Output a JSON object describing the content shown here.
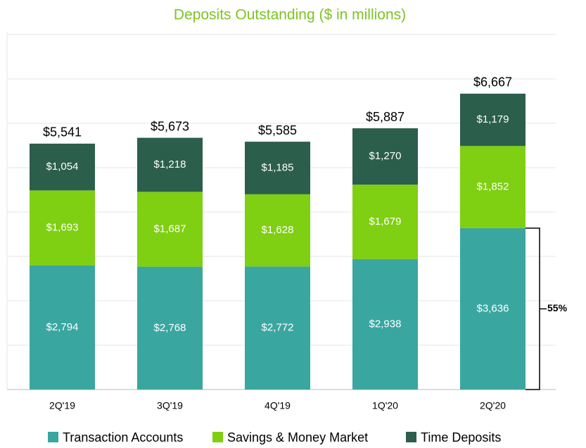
{
  "chart_data": {
    "type": "stacked_bar",
    "title": "Deposits Outstanding ($ in millions)",
    "categories": [
      "2Q'19",
      "3Q'19",
      "4Q'19",
      "1Q'20",
      "2Q'20"
    ],
    "series": [
      {
        "name": "Transaction Accounts",
        "color": "#3aa6a0",
        "values": [
          2794,
          2768,
          2772,
          2938,
          3636
        ],
        "value_labels": [
          "$2,794",
          "$2,768",
          "$2,772",
          "$2,938",
          "$3,636"
        ]
      },
      {
        "name": "Savings & Money Market",
        "color": "#7fcf12",
        "values": [
          1693,
          1687,
          1628,
          1679,
          1852
        ],
        "value_labels": [
          "$1,693",
          "$1,687",
          "$1,628",
          "$1,679",
          "$1,852"
        ]
      },
      {
        "name": "Time Deposits",
        "color": "#2c5e4c",
        "values": [
          1054,
          1218,
          1185,
          1270,
          1179
        ],
        "value_labels": [
          "$1,054",
          "$1,218",
          "$1,185",
          "$1,270",
          "$1,179"
        ]
      }
    ],
    "totals": [
      5541,
      5673,
      5585,
      5887,
      6667
    ],
    "total_labels": [
      "$5,541",
      "$5,673",
      "$5,585",
      "$5,887",
      "$6,667"
    ],
    "annotation": "55%",
    "ylim": [
      0,
      8000
    ],
    "yticks": [
      0,
      1000,
      2000,
      3000,
      4000,
      5000,
      6000,
      7000,
      8000
    ],
    "grid": true,
    "legend": "bottom"
  }
}
